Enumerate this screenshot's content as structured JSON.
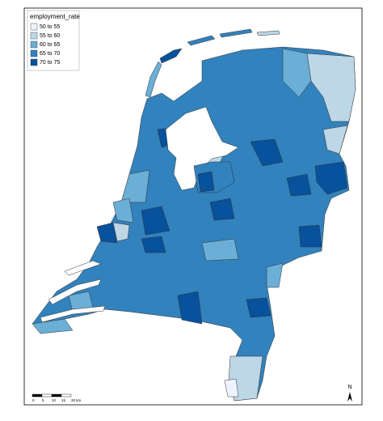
{
  "legend": {
    "title": "employment_rate",
    "items": [
      {
        "label": "50 to 55",
        "color": "#eff3ff"
      },
      {
        "label": "55 to 60",
        "color": "#bdd7e7"
      },
      {
        "label": "60 to 65",
        "color": "#6baed6"
      },
      {
        "label": "65 to 70",
        "color": "#3182bd"
      },
      {
        "label": "70 to 75",
        "color": "#08519c"
      }
    ]
  },
  "scale_bar": {
    "labels": [
      "0",
      "5",
      "10",
      "15",
      "20 km"
    ]
  },
  "north_arrow": "N"
}
